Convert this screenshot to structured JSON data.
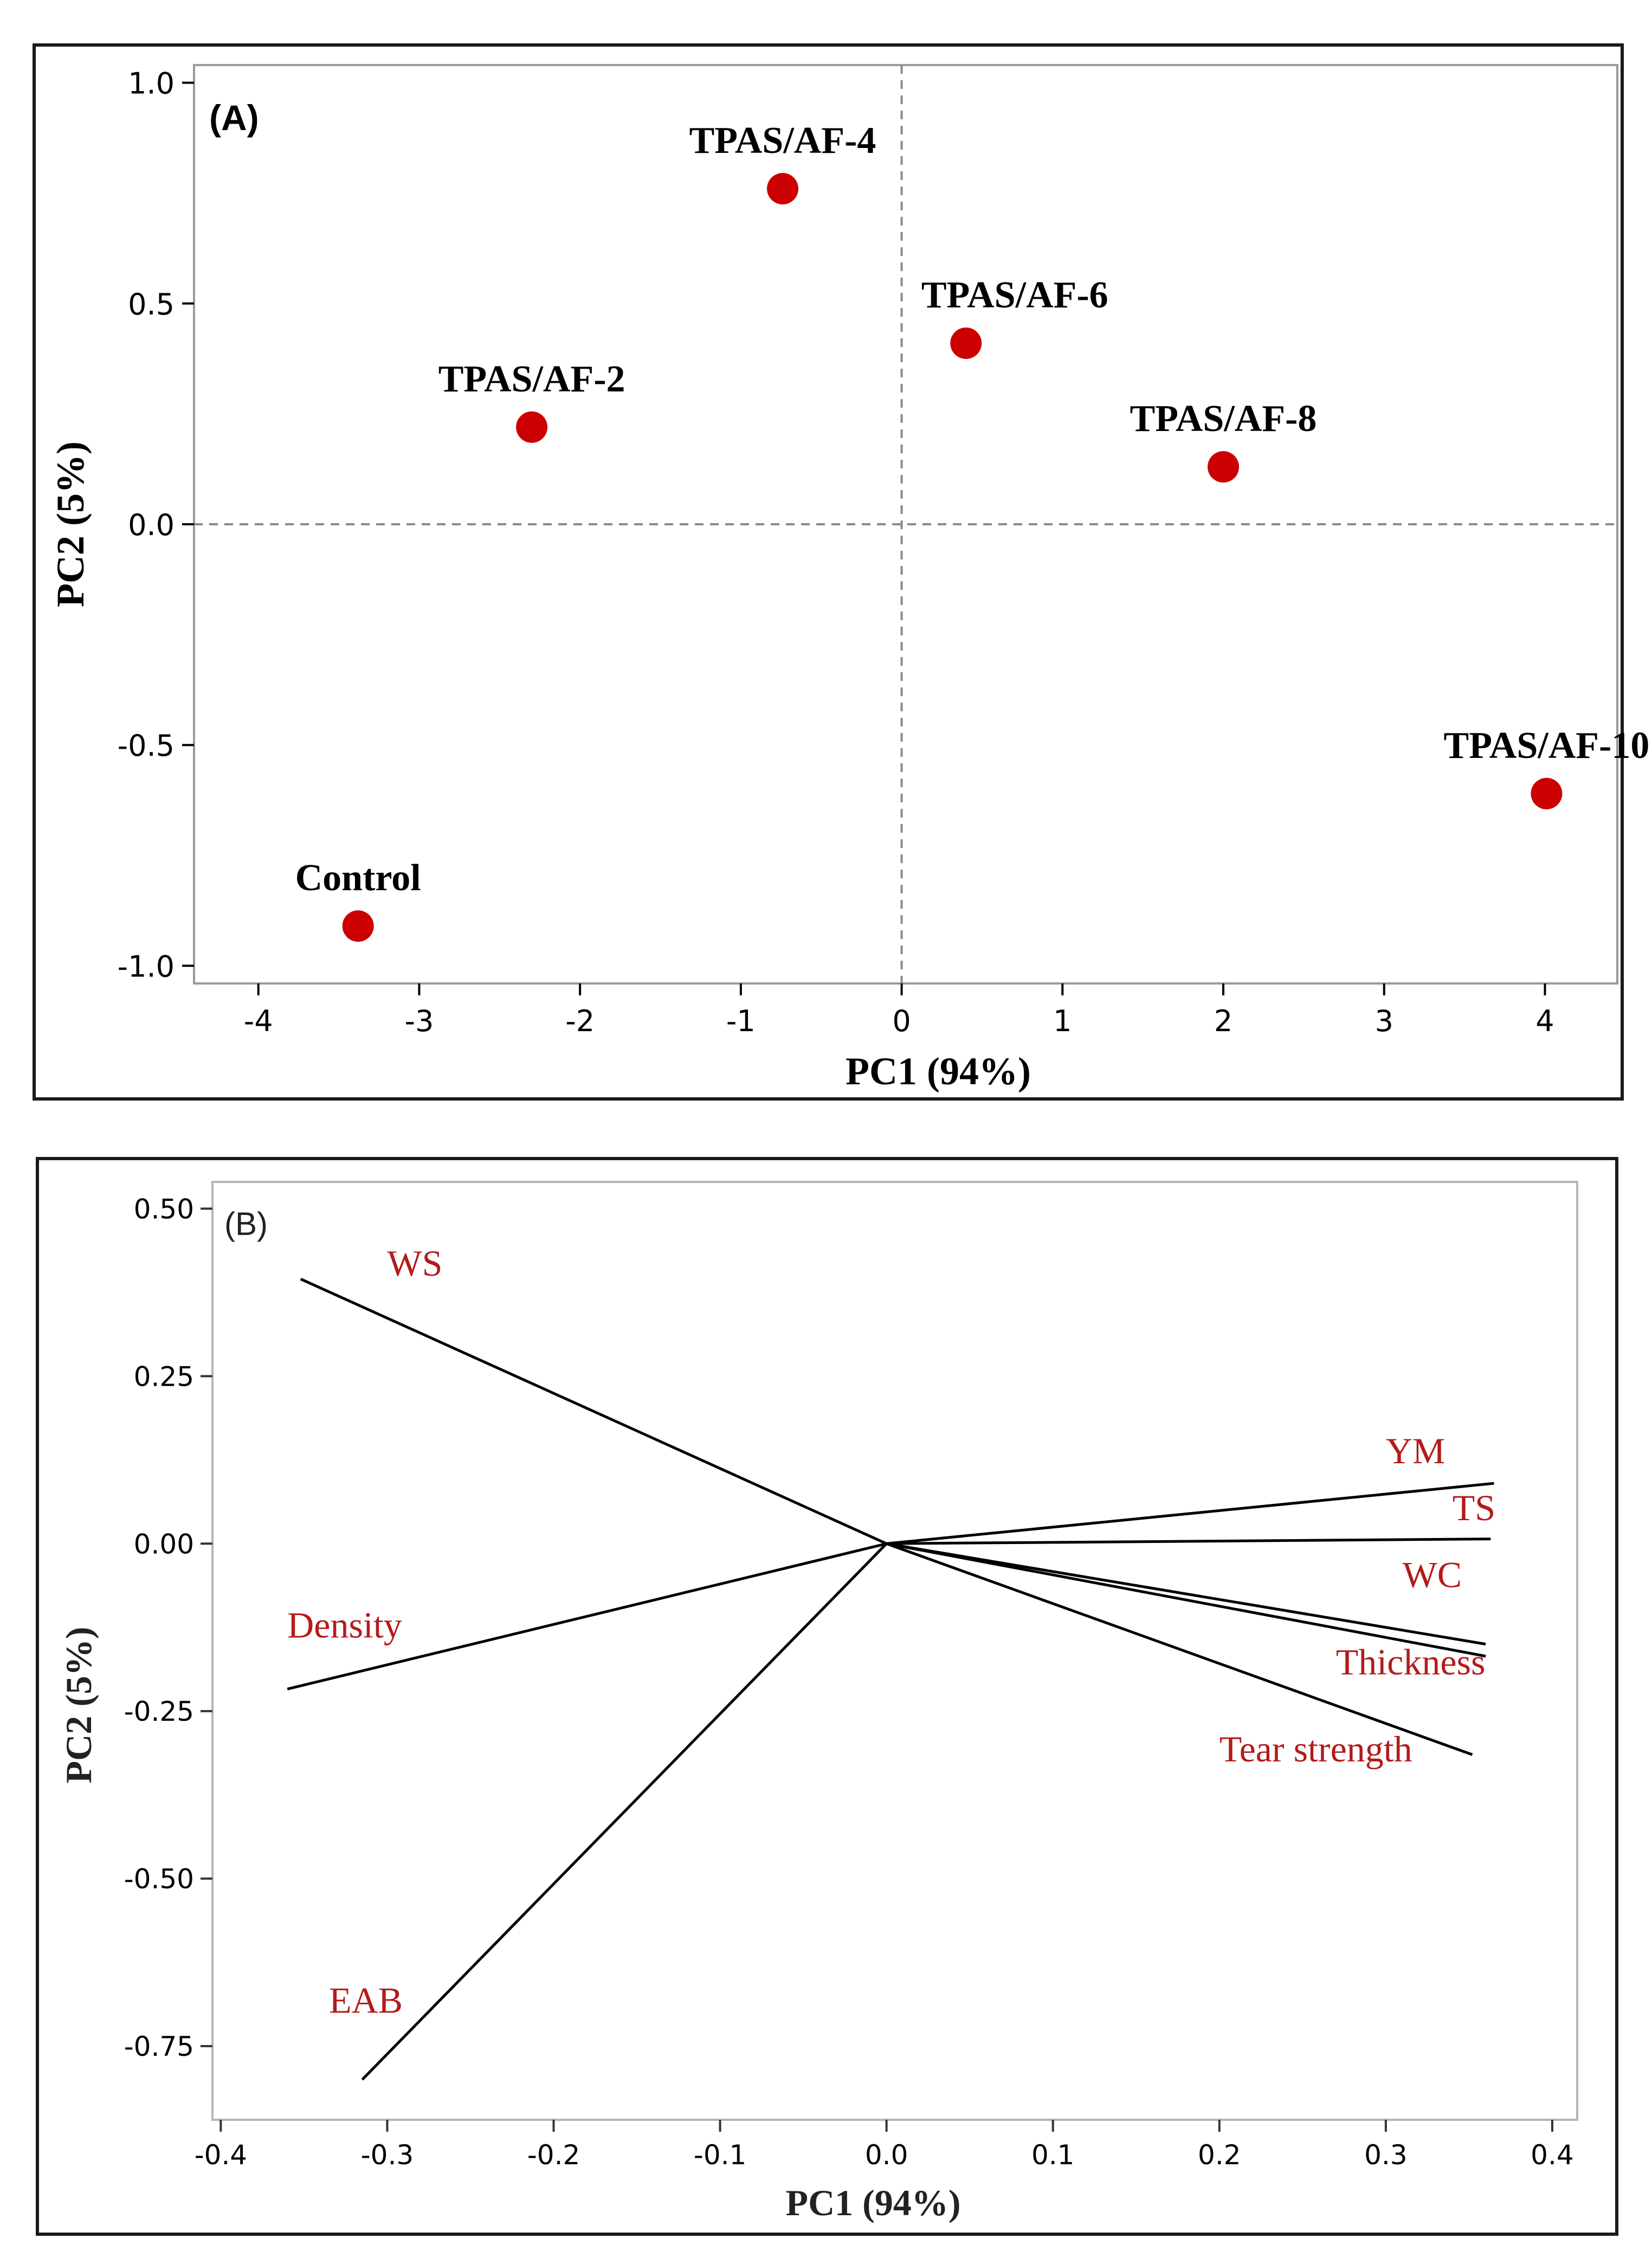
{
  "chart_data": [
    {
      "type": "scatter",
      "panel_label": "(A)",
      "xlabel": "PC1 (94%)",
      "ylabel": "PC2 (5%)",
      "xlim": [
        -4.4,
        4.45
      ],
      "ylim": [
        -1.04,
        1.04
      ],
      "x_ticks": [
        -4,
        -3,
        -2,
        -1,
        0,
        1,
        2,
        3,
        4
      ],
      "x_tick_labels": [
        "-4",
        "-3",
        "-2",
        "-1",
        "0",
        "1",
        "2",
        "3",
        "4"
      ],
      "y_ticks": [
        1.0,
        0.5,
        0.0,
        -0.5,
        -1.0
      ],
      "y_tick_labels": [
        "1.0",
        "0.5",
        "0.0",
        "-0.5",
        "-1.0"
      ],
      "reference_lines": {
        "x": 0,
        "y": 0,
        "style": "dashed"
      },
      "marker_color": "#cc0000",
      "points": [
        {
          "name": "Control",
          "x": -3.38,
          "y": -0.91,
          "label_anchor": "above"
        },
        {
          "name": "TPAS/AF-2",
          "x": -2.3,
          "y": 0.22,
          "label_anchor": "above"
        },
        {
          "name": "TPAS/AF-4",
          "x": -0.74,
          "y": 0.76,
          "label_anchor": "above"
        },
        {
          "name": "TPAS/AF-6",
          "x": 0.4,
          "y": 0.41,
          "label_anchor": "above-right"
        },
        {
          "name": "TPAS/AF-8",
          "x": 2.0,
          "y": 0.13,
          "label_anchor": "above"
        },
        {
          "name": "TPAS/AF-10",
          "x": 4.01,
          "y": -0.61,
          "label_anchor": "above"
        }
      ]
    },
    {
      "type": "loading-vectors",
      "panel_label": "(B)",
      "xlabel": "PC1 (94%)",
      "ylabel": "PC2 (5%)",
      "xlim": [
        -0.405,
        0.415
      ],
      "ylim": [
        -0.86,
        0.54
      ],
      "x_ticks": [
        -0.4,
        -0.3,
        -0.2,
        -0.1,
        0.0,
        0.1,
        0.2,
        0.3,
        0.4
      ],
      "x_tick_labels": [
        "-0.4",
        "-0.3",
        "-0.2",
        "-0.1",
        "0.0",
        "0.1",
        "0.2",
        "0.3",
        "0.4"
      ],
      "y_ticks": [
        0.5,
        0.25,
        0.0,
        -0.25,
        -0.5,
        -0.75
      ],
      "y_tick_labels": [
        "0.50",
        "0.25",
        "0.00",
        "-0.25",
        "-0.50",
        "-0.75"
      ],
      "label_color": "#b31b1b",
      "vectors": [
        {
          "name": "WS",
          "x": -0.352,
          "y": 0.395,
          "lx": -0.3,
          "ly": 0.4
        },
        {
          "name": "YM",
          "x": 0.365,
          "y": 0.09,
          "lx": 0.3,
          "ly": 0.12
        },
        {
          "name": "TS",
          "x": 0.363,
          "y": 0.007,
          "lx": 0.34,
          "ly": 0.035
        },
        {
          "name": "WC",
          "x": 0.36,
          "y": -0.15,
          "lx": 0.31,
          "ly": -0.065
        },
        {
          "name": "Thickness",
          "x": 0.36,
          "y": -0.168,
          "lx": 0.27,
          "ly": -0.195
        },
        {
          "name": "Tear strength",
          "x": 0.352,
          "y": -0.315,
          "lx": 0.2,
          "ly": -0.325
        },
        {
          "name": "Density",
          "x": -0.36,
          "y": -0.217,
          "lx": -0.36,
          "ly": -0.14
        },
        {
          "name": "EAB",
          "x": -0.315,
          "y": -0.8,
          "lx": -0.335,
          "ly": -0.7
        }
      ]
    }
  ]
}
